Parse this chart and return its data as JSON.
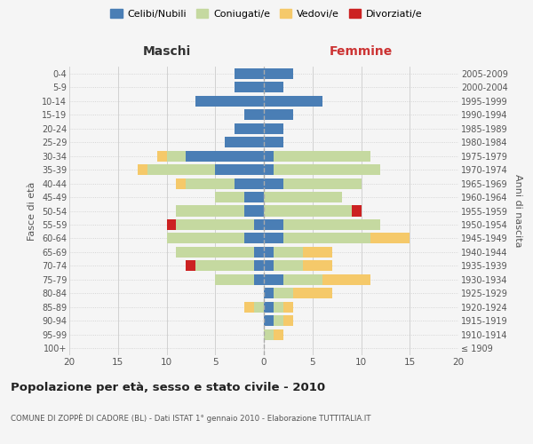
{
  "age_groups": [
    "100+",
    "95-99",
    "90-94",
    "85-89",
    "80-84",
    "75-79",
    "70-74",
    "65-69",
    "60-64",
    "55-59",
    "50-54",
    "45-49",
    "40-44",
    "35-39",
    "30-34",
    "25-29",
    "20-24",
    "15-19",
    "10-14",
    "5-9",
    "0-4"
  ],
  "birth_years": [
    "≤ 1909",
    "1910-1914",
    "1915-1919",
    "1920-1924",
    "1925-1929",
    "1930-1934",
    "1935-1939",
    "1940-1944",
    "1945-1949",
    "1950-1954",
    "1955-1959",
    "1960-1964",
    "1965-1969",
    "1970-1974",
    "1975-1979",
    "1980-1984",
    "1985-1989",
    "1990-1994",
    "1995-1999",
    "2000-2004",
    "2005-2009"
  ],
  "maschi": {
    "celibi": [
      0,
      0,
      0,
      0,
      0,
      1,
      1,
      1,
      2,
      1,
      2,
      2,
      3,
      5,
      8,
      4,
      3,
      2,
      7,
      3,
      3
    ],
    "coniugati": [
      0,
      0,
      0,
      1,
      0,
      4,
      6,
      8,
      8,
      8,
      7,
      3,
      5,
      7,
      2,
      0,
      0,
      0,
      0,
      0,
      0
    ],
    "vedovi": [
      0,
      0,
      0,
      1,
      0,
      0,
      0,
      0,
      0,
      0,
      0,
      0,
      1,
      1,
      1,
      0,
      0,
      0,
      0,
      0,
      0
    ],
    "divorziati": [
      0,
      0,
      0,
      0,
      0,
      0,
      1,
      0,
      0,
      1,
      0,
      0,
      0,
      0,
      0,
      0,
      0,
      0,
      0,
      0,
      0
    ]
  },
  "femmine": {
    "nubili": [
      0,
      0,
      1,
      1,
      1,
      2,
      1,
      1,
      2,
      2,
      0,
      0,
      2,
      1,
      1,
      2,
      2,
      3,
      6,
      2,
      3
    ],
    "coniugate": [
      0,
      1,
      1,
      1,
      2,
      4,
      3,
      3,
      9,
      10,
      9,
      8,
      8,
      11,
      10,
      0,
      0,
      0,
      0,
      0,
      0
    ],
    "vedove": [
      0,
      1,
      1,
      1,
      4,
      5,
      3,
      3,
      4,
      0,
      0,
      0,
      0,
      0,
      0,
      0,
      0,
      0,
      0,
      0,
      0
    ],
    "divorziate": [
      0,
      0,
      0,
      0,
      0,
      0,
      0,
      0,
      0,
      0,
      1,
      0,
      0,
      0,
      0,
      0,
      0,
      0,
      0,
      0,
      0
    ]
  },
  "colors": {
    "celibi": "#4a7eb5",
    "coniugati": "#c5d9a0",
    "vedovi": "#f5c96a",
    "divorziati": "#cc2222"
  },
  "xlim": 20,
  "title": "Popolazione per età, sesso e stato civile - 2010",
  "subtitle": "COMUNE DI ZOPPÈ DI CADORE (BL) - Dati ISTAT 1° gennaio 2010 - Elaborazione TUTTITALIA.IT",
  "ylabel_left": "Fasce di età",
  "ylabel_right": "Anni di nascita",
  "legend_labels": [
    "Celibi/Nubili",
    "Coniugati/e",
    "Vedovi/e",
    "Divorziati/e"
  ],
  "bg_color": "#f5f5f5",
  "grid_color": "#cccccc"
}
